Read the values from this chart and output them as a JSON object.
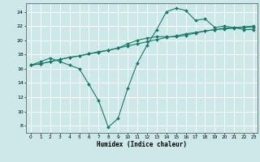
{
  "xlabel": "Humidex (Indice chaleur)",
  "bg_color": "#cce8e8",
  "grid_color": "#ffffff",
  "line_color": "#1a7a6a",
  "xlim": [
    -0.5,
    23.4
  ],
  "ylim": [
    7.0,
    25.2
  ],
  "xticks": [
    0,
    1,
    2,
    3,
    4,
    5,
    6,
    7,
    8,
    9,
    10,
    11,
    12,
    13,
    14,
    15,
    16,
    17,
    18,
    19,
    20,
    21,
    22,
    23
  ],
  "yticks": [
    8,
    10,
    12,
    14,
    16,
    18,
    20,
    22,
    24
  ],
  "series1_x": [
    0,
    1,
    2,
    3,
    4,
    5,
    6,
    7,
    8,
    9,
    10,
    11,
    12,
    13,
    14,
    15,
    16,
    17,
    18,
    19,
    20,
    21,
    22,
    23
  ],
  "series1_y": [
    16.5,
    17.0,
    17.5,
    17.0,
    16.5,
    16.0,
    13.8,
    11.5,
    7.8,
    9.0,
    13.2,
    16.8,
    19.3,
    21.5,
    24.0,
    24.5,
    24.2,
    22.8,
    23.0,
    21.8,
    22.0,
    21.8,
    21.5,
    21.5
  ],
  "series2_x": [
    0,
    1,
    2,
    3,
    4,
    5,
    6,
    7,
    8,
    9,
    10,
    11,
    12,
    13,
    14,
    15,
    16,
    17,
    18,
    19,
    20,
    21,
    22,
    23
  ],
  "series2_y": [
    16.5,
    16.7,
    17.0,
    17.3,
    17.6,
    17.8,
    18.1,
    18.3,
    18.6,
    18.9,
    19.2,
    19.5,
    19.8,
    20.1,
    20.4,
    20.6,
    20.9,
    21.1,
    21.3,
    21.5,
    21.7,
    21.8,
    21.9,
    22.0
  ],
  "series3_x": [
    0,
    1,
    2,
    3,
    4,
    5,
    6,
    7,
    8,
    9,
    10,
    11,
    12,
    13,
    14,
    15,
    16,
    17,
    18,
    19,
    20,
    21,
    22,
    23
  ],
  "series3_y": [
    16.5,
    16.7,
    17.0,
    17.3,
    17.6,
    17.8,
    18.1,
    18.4,
    18.6,
    18.9,
    19.5,
    20.0,
    20.3,
    20.5,
    20.5,
    20.5,
    20.7,
    21.0,
    21.3,
    21.5,
    21.6,
    21.7,
    21.8,
    21.8
  ]
}
